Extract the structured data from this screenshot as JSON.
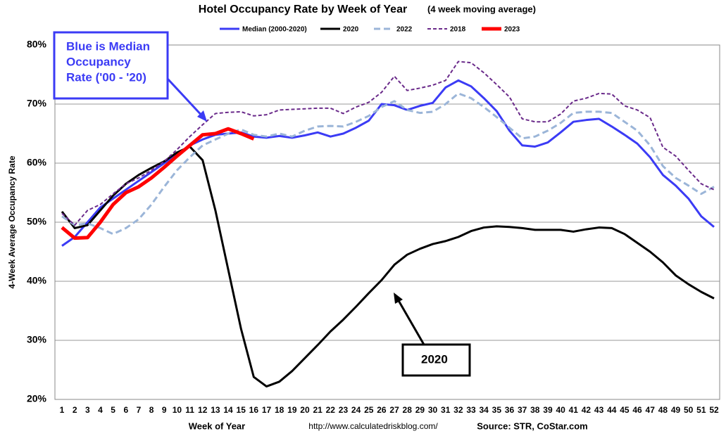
{
  "chart_data": {
    "type": "line",
    "title": "Hotel Occupancy Rate by  Week of Year",
    "subtitle": "(4 week moving average)",
    "x_label": "Week of Year",
    "y_label": "4-Week Average Occupancy Rate",
    "url": "http://www.calculatedriskblog.com/",
    "source": "Source: STR, CoStar.com",
    "annotations": [
      "Blue is Median",
      "Occupancy",
      "Rate ('00 - '20)",
      "2020"
    ],
    "categories": [
      "1",
      "2",
      "3",
      "4",
      "5",
      "6",
      "7",
      "8",
      "9",
      "10",
      "11",
      "12",
      "13",
      "14",
      "15",
      "16",
      "17",
      "18",
      "19",
      "20",
      "21",
      "22",
      "23",
      "24",
      "25",
      "26",
      "27",
      "28",
      "29",
      "30",
      "31",
      "32",
      "33",
      "34",
      "35",
      "36",
      "37",
      "38",
      "39",
      "40",
      "41",
      "42",
      "43",
      "44",
      "45",
      "46",
      "47",
      "48",
      "49",
      "50",
      "51",
      "52"
    ],
    "ylim": [
      20,
      80
    ],
    "yticks": [
      {
        "value": 20,
        "label": "20%"
      },
      {
        "value": 30,
        "label": "30%"
      },
      {
        "value": 40,
        "label": "40%"
      },
      {
        "value": 50,
        "label": "50%"
      },
      {
        "value": 60,
        "label": "60%"
      },
      {
        "value": 70,
        "label": "70%"
      },
      {
        "value": 80,
        "label": "80%"
      }
    ],
    "grid": true,
    "series": [
      {
        "name": "Median (2000-2020)",
        "color": "#3b3bf5",
        "dash": "solid",
        "width": 3,
        "values": [
          46,
          47.5,
          50,
          52.5,
          54,
          55.5,
          57,
          58.5,
          60,
          61.5,
          63,
          64,
          64.8,
          65,
          65.2,
          64.5,
          64.3,
          64.6,
          64.3,
          64.7,
          65.2,
          64.5,
          65,
          66,
          67.2,
          70,
          69.8,
          69,
          69.7,
          70.2,
          72.8,
          74,
          73,
          71,
          68.8,
          65.5,
          63,
          62.8,
          63.5,
          65.2,
          67,
          67.3,
          67.5,
          66.2,
          64.8,
          63.3,
          61,
          58,
          56.2,
          54,
          51,
          49.2
        ]
      },
      {
        "name": "2020",
        "color": "#000000",
        "dash": "solid",
        "width": 3,
        "values": [
          51.8,
          49,
          49.5,
          52,
          54.5,
          56.5,
          58,
          59.2,
          60.3,
          61.8,
          62.8,
          60.5,
          52,
          42,
          32,
          23.8,
          22.2,
          23,
          24.8,
          27,
          29.2,
          31.5,
          33.5,
          35.7,
          38,
          40.2,
          42.8,
          44.5,
          45.5,
          46.3,
          46.8,
          47.5,
          48.5,
          49.1,
          49.3,
          49.2,
          49,
          48.7,
          48.7,
          48.7,
          48.4,
          48.8,
          49.1,
          49,
          48,
          46.5,
          45,
          43.2,
          41,
          39.5,
          38.2,
          37.1
        ]
      },
      {
        "name": "2022",
        "color": "#9bb5d8",
        "dash": "dashed",
        "width": 3,
        "values": [
          51,
          49.5,
          49.8,
          49,
          48,
          49,
          50.5,
          53,
          56,
          58.8,
          61,
          63,
          64,
          65,
          65.7,
          64.8,
          64.5,
          65,
          64.5,
          65.5,
          66.2,
          66.3,
          66.2,
          67,
          68,
          69.5,
          70.5,
          69,
          68.5,
          68.7,
          70,
          71.8,
          71,
          69.5,
          67.8,
          66,
          64.2,
          64.5,
          65.5,
          66.8,
          68.5,
          68.7,
          68.7,
          68.5,
          67,
          65.5,
          63,
          59.5,
          57.5,
          56.2,
          54.8,
          56
        ]
      },
      {
        "name": "2018",
        "color": "#6a2a8a",
        "dash": "dotted",
        "width": 2,
        "values": [
          51.5,
          49.5,
          52,
          53,
          54.8,
          56.5,
          57.5,
          58.8,
          60.3,
          62.3,
          64.5,
          66.5,
          68.4,
          68.6,
          68.7,
          68,
          68.2,
          69,
          69.1,
          69.2,
          69.3,
          69.3,
          68.4,
          69.5,
          70.3,
          72,
          74.7,
          72.3,
          72.7,
          73.2,
          74,
          77.2,
          77,
          75.3,
          73.3,
          71.2,
          67.5,
          67,
          67,
          68.3,
          70.5,
          71,
          71.8,
          71.7,
          69.7,
          69,
          67.7,
          62.7,
          61.2,
          58.8,
          56.5,
          55.5
        ]
      },
      {
        "name": "2023",
        "color": "#ff0000",
        "dash": "solid",
        "width": 5,
        "values": [
          49.1,
          47.3,
          47.4,
          50,
          53,
          55,
          56,
          57.5,
          59.3,
          61.2,
          63,
          64.8,
          65,
          65.8,
          65,
          64.1,
          null,
          null,
          null,
          null,
          null,
          null,
          null,
          null,
          null,
          null,
          null,
          null,
          null,
          null,
          null,
          null,
          null,
          null,
          null,
          null,
          null,
          null,
          null,
          null,
          null,
          null,
          null,
          null,
          null,
          null,
          null,
          null,
          null,
          null,
          null,
          null
        ]
      }
    ]
  }
}
